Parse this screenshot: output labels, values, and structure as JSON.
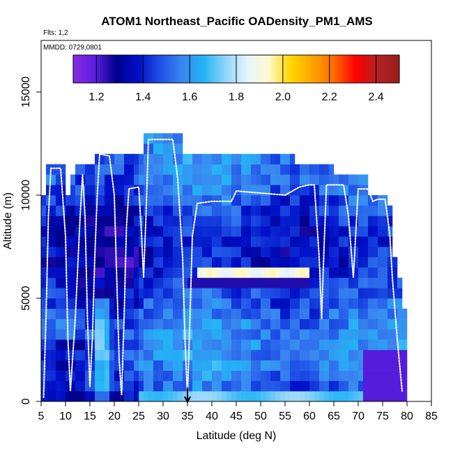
{
  "chart_data": {
    "type": "heatmap",
    "title": "ATOM1 Northeast_Pacific OADensity_PM1_AMS",
    "flights_label": "Flts: 1,2",
    "dates_label": "MMDD: 0729,0801",
    "xlabel": "Latitude (deg N)",
    "ylabel": "Altitude (m)",
    "xlim": [
      5,
      85
    ],
    "ylim": [
      0,
      17500
    ],
    "xticks": [
      5,
      10,
      15,
      20,
      25,
      30,
      35,
      40,
      45,
      50,
      55,
      60,
      65,
      70,
      75,
      80,
      85
    ],
    "yticks": [
      0,
      5000,
      10000,
      15000
    ],
    "grid": false,
    "colorbar": {
      "range": [
        1.1,
        2.5
      ],
      "ticks": [
        1.2,
        1.4,
        1.6,
        1.8,
        2.0,
        2.2,
        2.4
      ],
      "tick_labels": [
        "1.2",
        "1.4",
        "1.6",
        "1.8",
        "2.0",
        "2.2",
        "2.4"
      ],
      "placement": "top-inside",
      "colors": [
        "#8a2be2",
        "#5a1ee0",
        "#00008b",
        "#0010c8",
        "#1e50e6",
        "#3a86f0",
        "#22b4f5",
        "#8fd4fb",
        "#e6f4ff",
        "#fffacd",
        "#ffd700",
        "#ffa500",
        "#ff6a00",
        "#ff0000",
        "#b22222",
        "#9b1c1c"
      ]
    },
    "bin_width_deg": 1,
    "bin_height_m": 500,
    "columns": [
      {
        "x": 5,
        "top": 10000
      },
      {
        "x": 6,
        "top": 11500
      },
      {
        "x": 7,
        "top": 11500
      },
      {
        "x": 8,
        "top": 11500
      },
      {
        "x": 9,
        "top": 11500
      },
      {
        "x": 10,
        "top": 10000
      },
      {
        "x": 11,
        "top": 11000
      },
      {
        "x": 12,
        "top": 11500
      },
      {
        "x": 13,
        "top": 11500
      },
      {
        "x": 14,
        "top": 11500
      },
      {
        "x": 15,
        "top": 11500
      },
      {
        "x": 16,
        "top": 12000
      },
      {
        "x": 17,
        "top": 12000
      },
      {
        "x": 18,
        "top": 12000
      },
      {
        "x": 19,
        "top": 12000
      },
      {
        "x": 20,
        "top": 12000
      },
      {
        "x": 21,
        "top": 12000
      },
      {
        "x": 22,
        "top": 12000
      },
      {
        "x": 23,
        "top": 12000
      },
      {
        "x": 24,
        "top": 12000
      },
      {
        "x": 25,
        "top": 12000
      },
      {
        "x": 26,
        "top": 13000
      },
      {
        "x": 27,
        "top": 13000
      },
      {
        "x": 28,
        "top": 13000
      },
      {
        "x": 29,
        "top": 13000
      },
      {
        "x": 30,
        "top": 13000
      },
      {
        "x": 31,
        "top": 13000
      },
      {
        "x": 32,
        "top": 13000
      },
      {
        "x": 33,
        "top": 13000
      },
      {
        "x": 34,
        "top": 12000
      },
      {
        "x": 35,
        "top": 12000
      },
      {
        "x": 36,
        "top": 12000
      },
      {
        "x": 37,
        "top": 12000
      },
      {
        "x": 38,
        "top": 12000
      },
      {
        "x": 39,
        "top": 12000
      },
      {
        "x": 40,
        "top": 12000
      },
      {
        "x": 41,
        "top": 12000
      },
      {
        "x": 42,
        "top": 12000
      },
      {
        "x": 43,
        "top": 12000
      },
      {
        "x": 44,
        "top": 12000
      },
      {
        "x": 45,
        "top": 12000
      },
      {
        "x": 46,
        "top": 12000
      },
      {
        "x": 47,
        "top": 12000
      },
      {
        "x": 48,
        "top": 12000
      },
      {
        "x": 49,
        "top": 12000
      },
      {
        "x": 50,
        "top": 12000
      },
      {
        "x": 51,
        "top": 12000
      },
      {
        "x": 52,
        "top": 12000
      },
      {
        "x": 53,
        "top": 12000
      },
      {
        "x": 54,
        "top": 12000
      },
      {
        "x": 55,
        "top": 12000
      },
      {
        "x": 56,
        "top": 12000
      },
      {
        "x": 57,
        "top": 11500
      },
      {
        "x": 58,
        "top": 11500
      },
      {
        "x": 59,
        "top": 11500
      },
      {
        "x": 60,
        "top": 11500
      },
      {
        "x": 61,
        "top": 11500
      },
      {
        "x": 62,
        "top": 11500
      },
      {
        "x": 63,
        "top": 11500
      },
      {
        "x": 64,
        "top": 11500
      },
      {
        "x": 65,
        "top": 11000
      },
      {
        "x": 66,
        "top": 11000
      },
      {
        "x": 67,
        "top": 11000
      },
      {
        "x": 68,
        "top": 11000
      },
      {
        "x": 69,
        "top": 11000
      },
      {
        "x": 70,
        "top": 11000
      },
      {
        "x": 71,
        "top": 11000
      },
      {
        "x": 72,
        "top": 10000
      },
      {
        "x": 73,
        "top": 10000
      },
      {
        "x": 74,
        "top": 10000
      },
      {
        "x": 75,
        "top": 10000
      },
      {
        "x": 76,
        "top": 9500
      },
      {
        "x": 77,
        "top": 7000
      },
      {
        "x": 78,
        "top": 6000
      },
      {
        "x": 79,
        "top": 4500
      }
    ],
    "flight_track": [
      [
        5.5,
        200
      ],
      [
        6.0,
        4000
      ],
      [
        6.5,
        9000
      ],
      [
        7.0,
        11300
      ],
      [
        9.0,
        11300
      ],
      [
        10.0,
        8000
      ],
      [
        10.5,
        3000
      ],
      [
        11.0,
        500
      ],
      [
        12.0,
        4000
      ],
      [
        13.0,
        9000
      ],
      [
        13.5,
        11000
      ],
      [
        14.0,
        9000
      ],
      [
        14.5,
        4000
      ],
      [
        15.0,
        700
      ],
      [
        15.5,
        3000
      ],
      [
        16.0,
        7000
      ],
      [
        16.5,
        10000
      ],
      [
        17.0,
        12000
      ],
      [
        19.0,
        11900
      ],
      [
        20.0,
        10000
      ],
      [
        20.5,
        6000
      ],
      [
        21.0,
        2000
      ],
      [
        21.5,
        300
      ],
      [
        22.0,
        4000
      ],
      [
        22.5,
        8500
      ],
      [
        23.0,
        10300
      ],
      [
        25.0,
        10400
      ],
      [
        25.5,
        8500
      ],
      [
        26.0,
        6000
      ],
      [
        26.5,
        9000
      ],
      [
        27.0,
        12700
      ],
      [
        31.0,
        12700
      ],
      [
        32.0,
        12700
      ],
      [
        33.0,
        10800
      ],
      [
        34.0,
        7000
      ],
      [
        34.5,
        3000
      ],
      [
        35.0,
        200
      ],
      [
        35.5,
        4000
      ],
      [
        36.0,
        8000
      ],
      [
        37.0,
        9600
      ],
      [
        40.0,
        9700
      ],
      [
        44.0,
        9700
      ],
      [
        45.0,
        10200
      ],
      [
        50.0,
        10100
      ],
      [
        55.0,
        10000
      ],
      [
        58.0,
        10400
      ],
      [
        60.0,
        10500
      ],
      [
        61.0,
        10500
      ],
      [
        62.0,
        7000
      ],
      [
        62.5,
        4000
      ],
      [
        63.0,
        7500
      ],
      [
        63.5,
        10500
      ],
      [
        67.0,
        10500
      ],
      [
        68.0,
        9000
      ],
      [
        69.0,
        6000
      ],
      [
        70.0,
        10300
      ],
      [
        72.0,
        10300
      ],
      [
        73.0,
        9700
      ],
      [
        74.0,
        9800
      ],
      [
        75.5,
        9800
      ],
      [
        76.0,
        9000
      ],
      [
        76.5,
        8000
      ],
      [
        77.0,
        6000
      ],
      [
        78.0,
        3000
      ],
      [
        79.0,
        500
      ]
    ],
    "arrow_marker": {
      "x": 35,
      "label": ""
    }
  }
}
